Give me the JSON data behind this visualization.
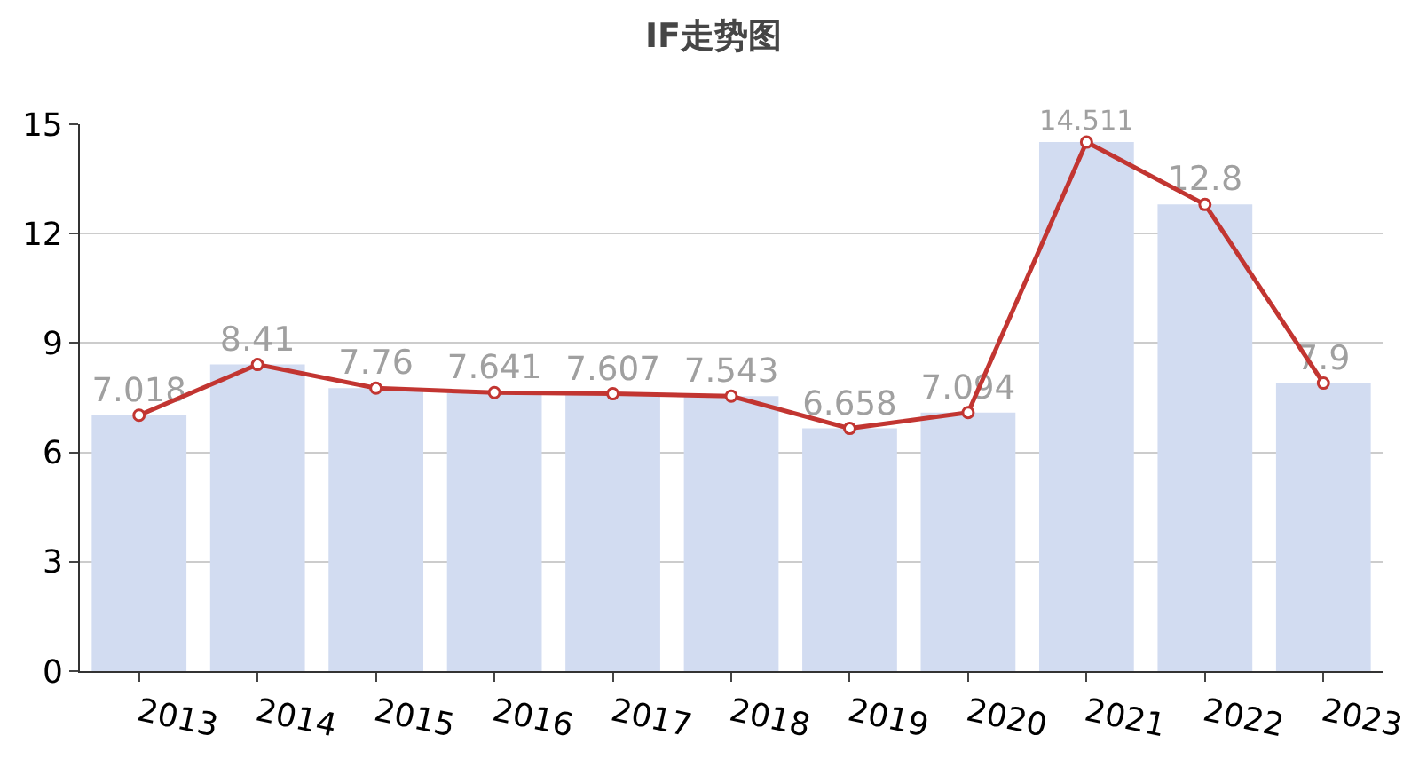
{
  "chart_data": {
    "type": "bar",
    "title": "IF走势图",
    "categories": [
      "2013",
      "2014",
      "2015",
      "2016",
      "2017",
      "2018",
      "2019",
      "2020",
      "2021",
      "2022",
      "2023"
    ],
    "series": [
      {
        "color": "#d2dcf1",
        "values": [
          7.018,
          8.41,
          7.76,
          7.641,
          7.607,
          7.543,
          6.658,
          7.094,
          14.511,
          12.8,
          7.9
        ],
        "value_labels": [
          "7.018",
          "8.41",
          "7.76",
          "7.641",
          "7.607",
          "7.543",
          "6.658",
          "7.094",
          "14.511",
          "12.8",
          "7.9"
        ]
      },
      {
        "type": "line",
        "color": "#c23531",
        "marker": "circle",
        "values": [
          7.018,
          8.41,
          7.76,
          7.641,
          7.607,
          7.543,
          6.658,
          7.094,
          14.511,
          12.8,
          7.9
        ]
      }
    ],
    "ylim": [
      0,
      15
    ],
    "yticks": [
      0,
      3,
      6,
      9,
      12,
      15
    ],
    "grid": "y",
    "legend": false
  }
}
